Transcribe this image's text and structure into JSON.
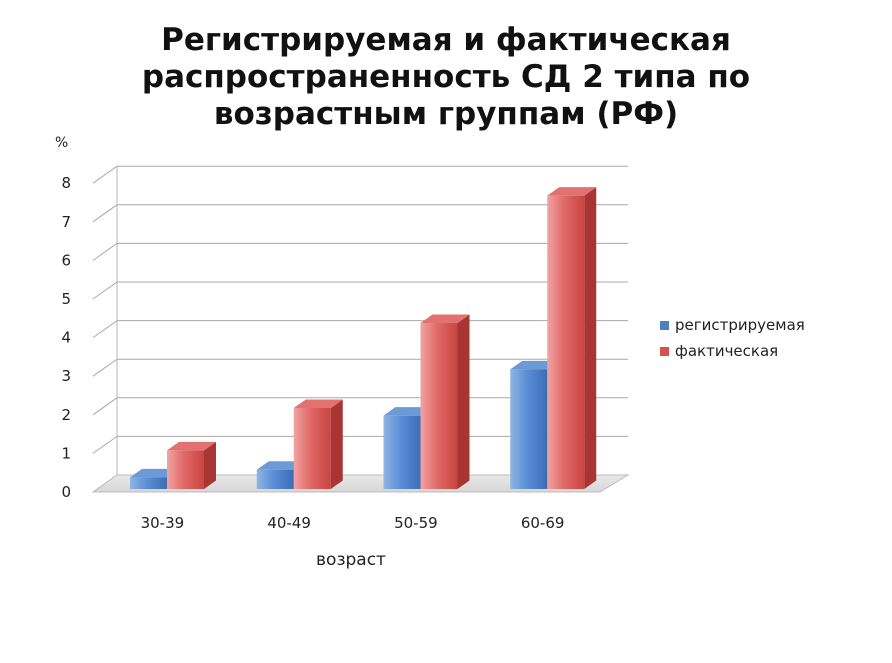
{
  "title_lines": [
    "Регистрируемая и фактическая",
    "распространенность СД 2 типа по",
    "возрастным группам (РФ)"
  ],
  "colors": {
    "series_1": "#4f81bd",
    "series_2": "#d9504f"
  },
  "chart_data": {
    "type": "bar",
    "title": "Регистрируемая и фактическая распространенность СД 2 типа по возрастным группам (РФ)",
    "xlabel": "возраст",
    "ylabel": "%",
    "ylim": [
      0,
      8
    ],
    "yticks": [
      "0",
      "1",
      "2",
      "3",
      "4",
      "5",
      "6",
      "7",
      "8"
    ],
    "categories": [
      "30-39",
      "40-49",
      "50-59",
      "60-69"
    ],
    "series": [
      {
        "name": "регистрируемая",
        "values": [
          0.3,
          0.5,
          1.9,
          3.1
        ]
      },
      {
        "name": "фактическая",
        "values": [
          1.0,
          2.1,
          4.3,
          7.6
        ]
      }
    ],
    "grid": true,
    "legend": "right"
  }
}
